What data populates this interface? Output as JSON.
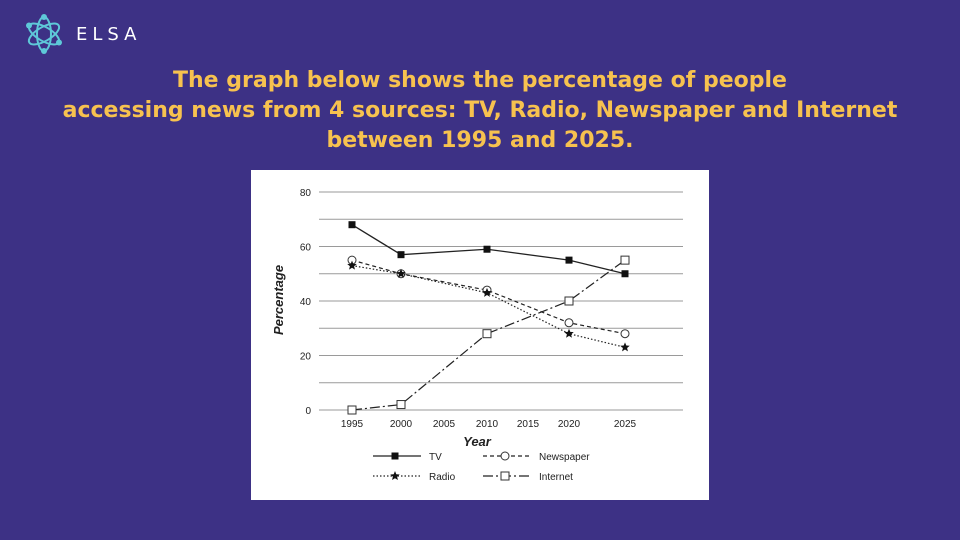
{
  "brand": {
    "name": "ELSA"
  },
  "heading": {
    "lines": [
      "The graph below shows the percentage of people",
      "accessing news from 4 sources: TV, Radio, Newspaper and Internet",
      "between 1995 and 2025."
    ]
  },
  "colors": {
    "background": "#3d3185",
    "heading": "#f7c24f",
    "logo": "#5ec8d8"
  },
  "chart_data": {
    "type": "line",
    "xlabel": "Year",
    "ylabel": "Percentage",
    "x_ticks": [
      "1995",
      "2000",
      "2005",
      "2010",
      "2015",
      "2020",
      "2025"
    ],
    "y_ticks": [
      "0",
      "20",
      "40",
      "60",
      "80"
    ],
    "xlim": [
      1995,
      2025
    ],
    "ylim": [
      0,
      80
    ],
    "grid": "horizontal",
    "legend_position": "bottom",
    "series": [
      {
        "name": "TV",
        "marker": "filled-square",
        "line": "solid",
        "x": [
          1995,
          2000,
          2010,
          2020,
          2025
        ],
        "values": [
          68,
          57,
          59,
          55,
          50
        ]
      },
      {
        "name": "Newspaper",
        "marker": "open-circle",
        "line": "dashed",
        "x": [
          1995,
          2000,
          2010,
          2020,
          2025
        ],
        "values": [
          55,
          50,
          44,
          32,
          28
        ]
      },
      {
        "name": "Radio",
        "marker": "star",
        "line": "dotted",
        "x": [
          1995,
          2000,
          2010,
          2020,
          2025
        ],
        "values": [
          53,
          50,
          43,
          28,
          23
        ]
      },
      {
        "name": "Internet",
        "marker": "open-square",
        "line": "dash-dot",
        "x": [
          1995,
          2000,
          2010,
          2020,
          2025
        ],
        "values": [
          0,
          2,
          28,
          40,
          55
        ]
      }
    ]
  }
}
